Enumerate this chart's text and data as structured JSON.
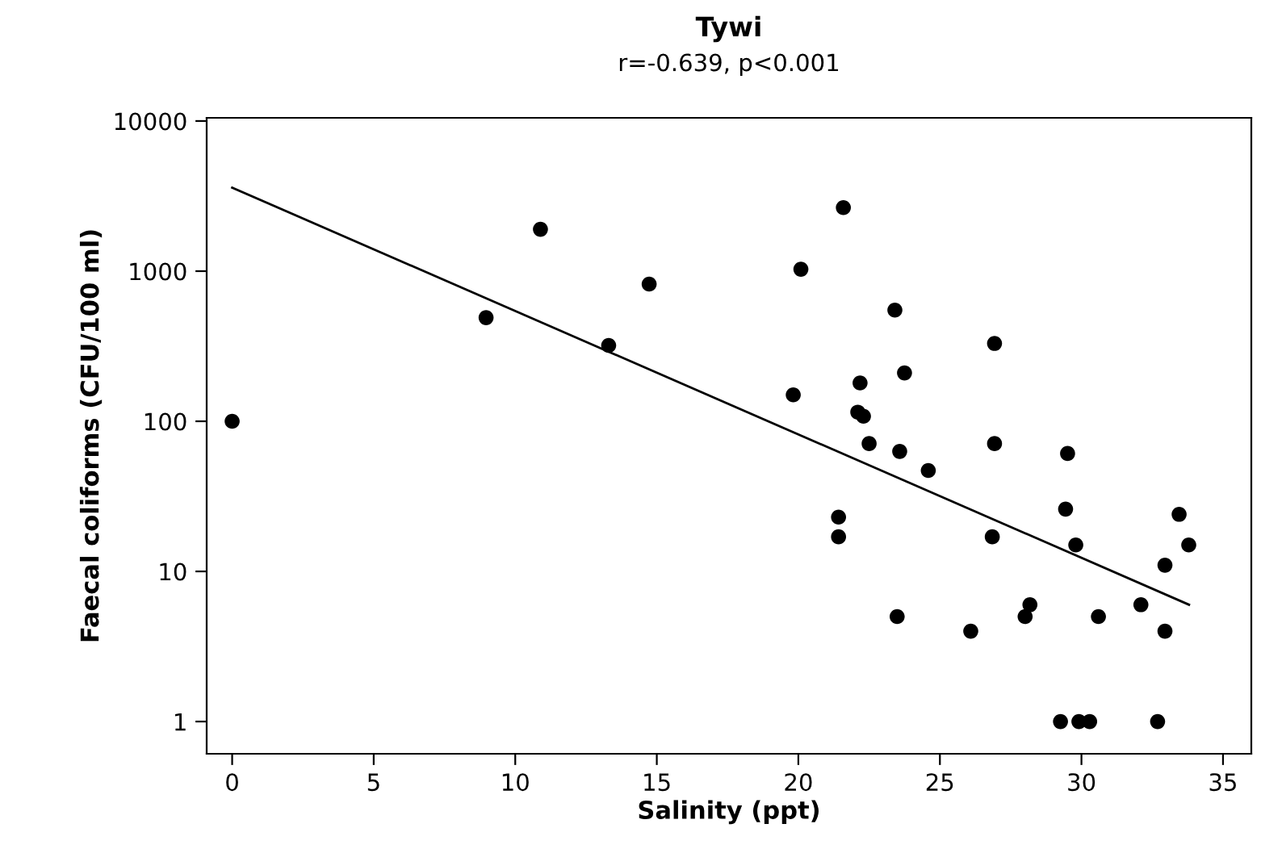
{
  "chart_data": {
    "type": "scatter",
    "title": "Tywi",
    "subtitle": "r=-0.639, p<0.001",
    "xlabel": "Salinity (ppt)",
    "ylabel": "Faecal coliforms (CFU/100 ml)",
    "log": "y",
    "grid": false,
    "legend": false,
    "marker": "circle",
    "xlim": [
      -0.9,
      36
    ],
    "xticks": [
      0,
      5,
      10,
      15,
      20,
      25,
      30,
      35
    ],
    "ylim": [
      0.61,
      10500
    ],
    "yticks": [
      1,
      10,
      100,
      1000,
      10000
    ],
    "series": [
      {
        "color": "#000000",
        "x": [
          0,
          8.97,
          10.89,
          13.3,
          14.73,
          21.59,
          20.09,
          23.41,
          26.93,
          23.75,
          22.18,
          19.82,
          22.1,
          22.3,
          22.5,
          23.58,
          26.93,
          24.59,
          29.51,
          29.44,
          21.42,
          21.42,
          26.85,
          29.8,
          33.45,
          33.79,
          32.95,
          23.49,
          26.09,
          28.18,
          28.01,
          30.6,
          32.1,
          32.95,
          29.26,
          29.91,
          30.29,
          32.69
        ],
        "values": [
          100,
          490,
          1900,
          320,
          820,
          2650,
          1030,
          550,
          330,
          210,
          180,
          150,
          115,
          108,
          71,
          63,
          71,
          47,
          61,
          26,
          23,
          17,
          17,
          15,
          24,
          15,
          11,
          5,
          4,
          6,
          5,
          5,
          6,
          4,
          1,
          1,
          1,
          1
        ]
      },
      {
        "type": "line",
        "color": "#000000",
        "marker": "none",
        "line_style": "solid",
        "x": [
          0,
          33.8
        ],
        "values": [
          3600,
          6
        ]
      }
    ]
  }
}
